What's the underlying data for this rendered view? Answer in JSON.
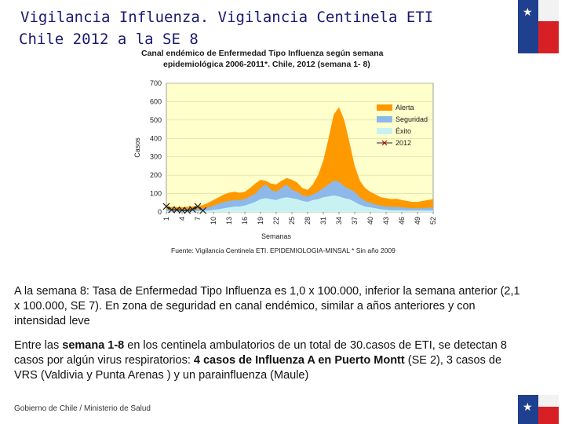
{
  "slide": {
    "title_line1": "Vigilancia Influenza.  Vigilancia Centinela ETI",
    "title_line2": "Chile 2012 a la SE 8",
    "footer": "Gobierno de Chile / Ministerio de Salud"
  },
  "chart_heading": {
    "line1": "Canal  endémico de Enfermedad Tipo Influenza según semana",
    "line2": "epidemiológica 2006-2011*.  Chile, 2012 (semana 1- 8)"
  },
  "chart_source": "Fuente: Vigilancia Centinela ETI. EPIDEMIOLOGIA-MINSAL * Sin año 2009",
  "paragraph1": {
    "p1_a": "A la semana 8:   Tasa de Enfermedad Tipo Influenza es  1,0 x 100.000,",
    "p1_b": " inferior  la semana anterior (2,1 x 100.000, SE 7).   En zona de seguridad en canal endémico, similar a años anteriores y con  intensidad leve"
  },
  "paragraph2": {
    "p2_a": "Entre las ",
    "p2_b": "semana 1-8",
    "p2_c": " en los centinela ambulatorios de un total de 30.casos de ETI, se detectan 8 casos por algún virus respiratorios: ",
    "p2_d": "4 casos  de Influenza A en Puerto Montt",
    "p2_e": " (SE 2),  3 casos de VRS (Valdivia  y Punta Arenas ) y un parainfluenza (Maule)"
  },
  "chart_data": {
    "type": "area",
    "ylabel": "Casos",
    "xlabel": "Semanas",
    "ylim": [
      0,
      700
    ],
    "yticks": [
      0,
      100,
      200,
      300,
      400,
      500,
      600,
      700
    ],
    "ytick_labels": [
      "0",
      "100",
      "200",
      "300",
      "400",
      "500",
      "600",
      "700"
    ],
    "xticks": [
      1,
      4,
      7,
      10,
      13,
      16,
      19,
      22,
      25,
      28,
      31,
      34,
      37,
      40,
      43,
      46,
      49,
      52
    ],
    "xlim": [
      1,
      52
    ],
    "legend_position": "right",
    "colors": {
      "alerta": "#ff9900",
      "seguridad": "#8db8ea",
      "exito": "#c8f2f2",
      "series_2012": "#111111",
      "marker_2012": "#cc0000",
      "plot_bg": "#ffffcc"
    },
    "weeks": [
      1,
      2,
      3,
      4,
      5,
      6,
      7,
      8,
      9,
      10,
      11,
      12,
      13,
      14,
      15,
      16,
      17,
      18,
      19,
      20,
      21,
      22,
      23,
      24,
      25,
      26,
      27,
      28,
      29,
      30,
      31,
      32,
      33,
      34,
      35,
      36,
      37,
      38,
      39,
      40,
      41,
      42,
      43,
      44,
      45,
      46,
      47,
      48,
      49,
      50,
      51,
      52
    ],
    "series": [
      {
        "name": "Alerta",
        "values": [
          30,
          28,
          27,
          26,
          28,
          30,
          32,
          38,
          50,
          65,
          80,
          95,
          105,
          110,
          105,
          110,
          130,
          155,
          175,
          170,
          155,
          150,
          170,
          185,
          175,
          160,
          130,
          120,
          150,
          200,
          280,
          400,
          530,
          570,
          500,
          380,
          250,
          170,
          130,
          110,
          95,
          80,
          75,
          70,
          72,
          65,
          60,
          55,
          55,
          60,
          65,
          70
        ]
      },
      {
        "name": "Seguridad",
        "values": [
          15,
          14,
          13,
          12,
          13,
          14,
          15,
          18,
          25,
          35,
          45,
          55,
          60,
          65,
          65,
          70,
          85,
          100,
          130,
          150,
          120,
          110,
          130,
          150,
          120,
          110,
          90,
          85,
          95,
          110,
          130,
          150,
          170,
          165,
          140,
          125,
          110,
          80,
          60,
          50,
          40,
          35,
          30,
          28,
          28,
          25,
          22,
          20,
          20,
          20,
          22,
          25
        ]
      },
      {
        "name": "Éxito",
        "values": [
          5,
          5,
          5,
          4,
          4,
          5,
          5,
          6,
          8,
          12,
          15,
          20,
          25,
          30,
          30,
          35,
          45,
          55,
          70,
          75,
          70,
          65,
          75,
          80,
          75,
          70,
          60,
          55,
          65,
          70,
          80,
          85,
          90,
          85,
          75,
          70,
          55,
          40,
          30,
          25,
          20,
          15,
          12,
          10,
          10,
          10,
          8,
          8,
          8,
          8,
          8,
          8
        ]
      },
      {
        "name": "2012",
        "values": [
          30,
          12,
          12,
          10,
          8,
          14,
          30,
          8
        ]
      }
    ]
  }
}
